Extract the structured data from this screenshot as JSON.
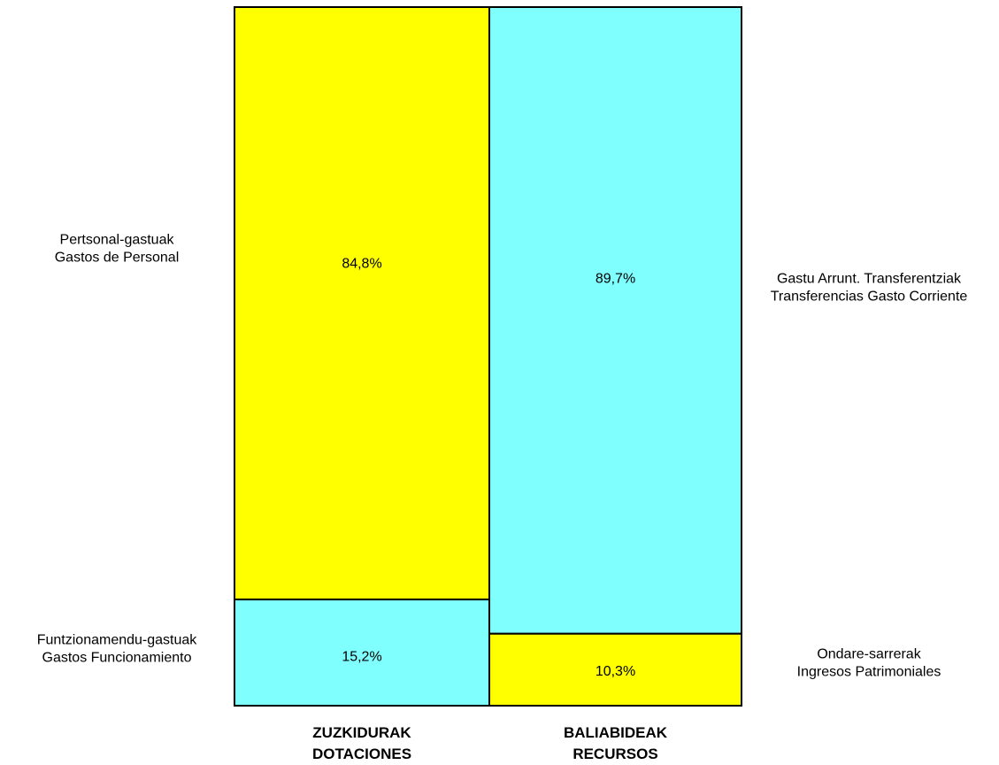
{
  "chart_data": {
    "type": "stacked-bar",
    "categories": [
      {
        "name_line1": "ZUZKIDURAK",
        "name_line2": "DOTACIONES"
      },
      {
        "name_line1": "BALIABIDEAK",
        "name_line2": "RECURSOS"
      }
    ],
    "columns": [
      {
        "segments": [
          {
            "label_line1": "Pertsonal-gastuak",
            "label_line2": "Gastos de Personal",
            "value": 84.8,
            "value_text": "84,8%",
            "color": "#ffff00",
            "side": "left"
          },
          {
            "label_line1": "Funtzionamendu-gastuak",
            "label_line2": "Gastos Funcionamiento",
            "value": 15.2,
            "value_text": "15,2%",
            "color": "#80ffff",
            "side": "left"
          }
        ]
      },
      {
        "segments": [
          {
            "label_line1": "Gastu Arrunt. Transferentziak",
            "label_line2": "Transferencias Gasto Corriente",
            "value": 89.7,
            "value_text": "89,7%",
            "color": "#80ffff",
            "side": "right"
          },
          {
            "label_line1": "Ondare-sarrerak",
            "label_line2": "Ingresos Patrimoniales",
            "value": 10.3,
            "value_text": "10,3%",
            "color": "#ffff00",
            "side": "right"
          }
        ]
      }
    ],
    "ylim": [
      0,
      100
    ]
  }
}
